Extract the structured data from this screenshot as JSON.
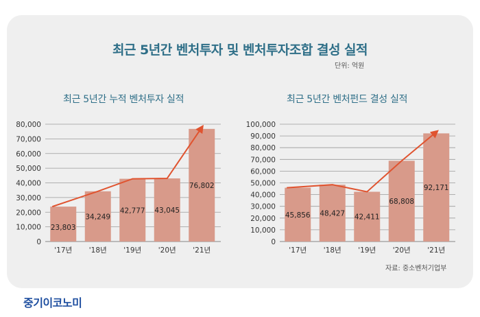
{
  "main_title": "최근 5년간 벤처투자 및 벤처투자조합 결성 실적",
  "unit_note": "단위: 억원",
  "source_note": "자료: 중소벤처기업부",
  "logo_text": "중기이코노미",
  "colors": {
    "bar": "#d89a8a",
    "line": "#e0532f",
    "title": "#2f6f88",
    "grid": "#9a9a9a"
  },
  "chart_data": [
    {
      "type": "bar",
      "title": "최근 5년간 누적 벤처투자 실적",
      "categories": [
        "'17년",
        "'18년",
        "'19년",
        "'20년",
        "'21년"
      ],
      "values": [
        23803,
        34249,
        42777,
        43045,
        76802
      ],
      "value_labels": [
        "23,803",
        "34,249",
        "42,777",
        "43,045",
        "76,802"
      ],
      "ylim": [
        0,
        80000
      ],
      "yticks": [
        0,
        10000,
        20000,
        30000,
        40000,
        50000,
        60000,
        70000,
        80000
      ],
      "ytick_labels": [
        "0",
        "10,000",
        "20,000",
        "30,000",
        "40,000",
        "50,000",
        "60,000",
        "70,000",
        "80,000"
      ],
      "trend_line": [
        23803,
        34249,
        42777,
        43045,
        76802
      ],
      "grid": true
    },
    {
      "type": "bar",
      "title": "최근 5년간 벤처펀드 결성 실적",
      "categories": [
        "'17년",
        "'18년",
        "'19년",
        "'20년",
        "'21년"
      ],
      "values": [
        45856,
        48427,
        42411,
        68808,
        92171
      ],
      "value_labels": [
        "45,856",
        "48,427",
        "42,411",
        "68,808",
        "92,171"
      ],
      "ylim": [
        0,
        100000
      ],
      "yticks": [
        0,
        10000,
        20000,
        30000,
        40000,
        50000,
        60000,
        70000,
        80000,
        90000,
        100000
      ],
      "ytick_labels": [
        "0",
        "10,000",
        "20,000",
        "30,000",
        "40,000",
        "50,000",
        "60,000",
        "70,000",
        "80,000",
        "90,000",
        "100,000"
      ],
      "trend_line": [
        45856,
        48427,
        42411,
        68808,
        92171
      ],
      "grid": true
    }
  ]
}
